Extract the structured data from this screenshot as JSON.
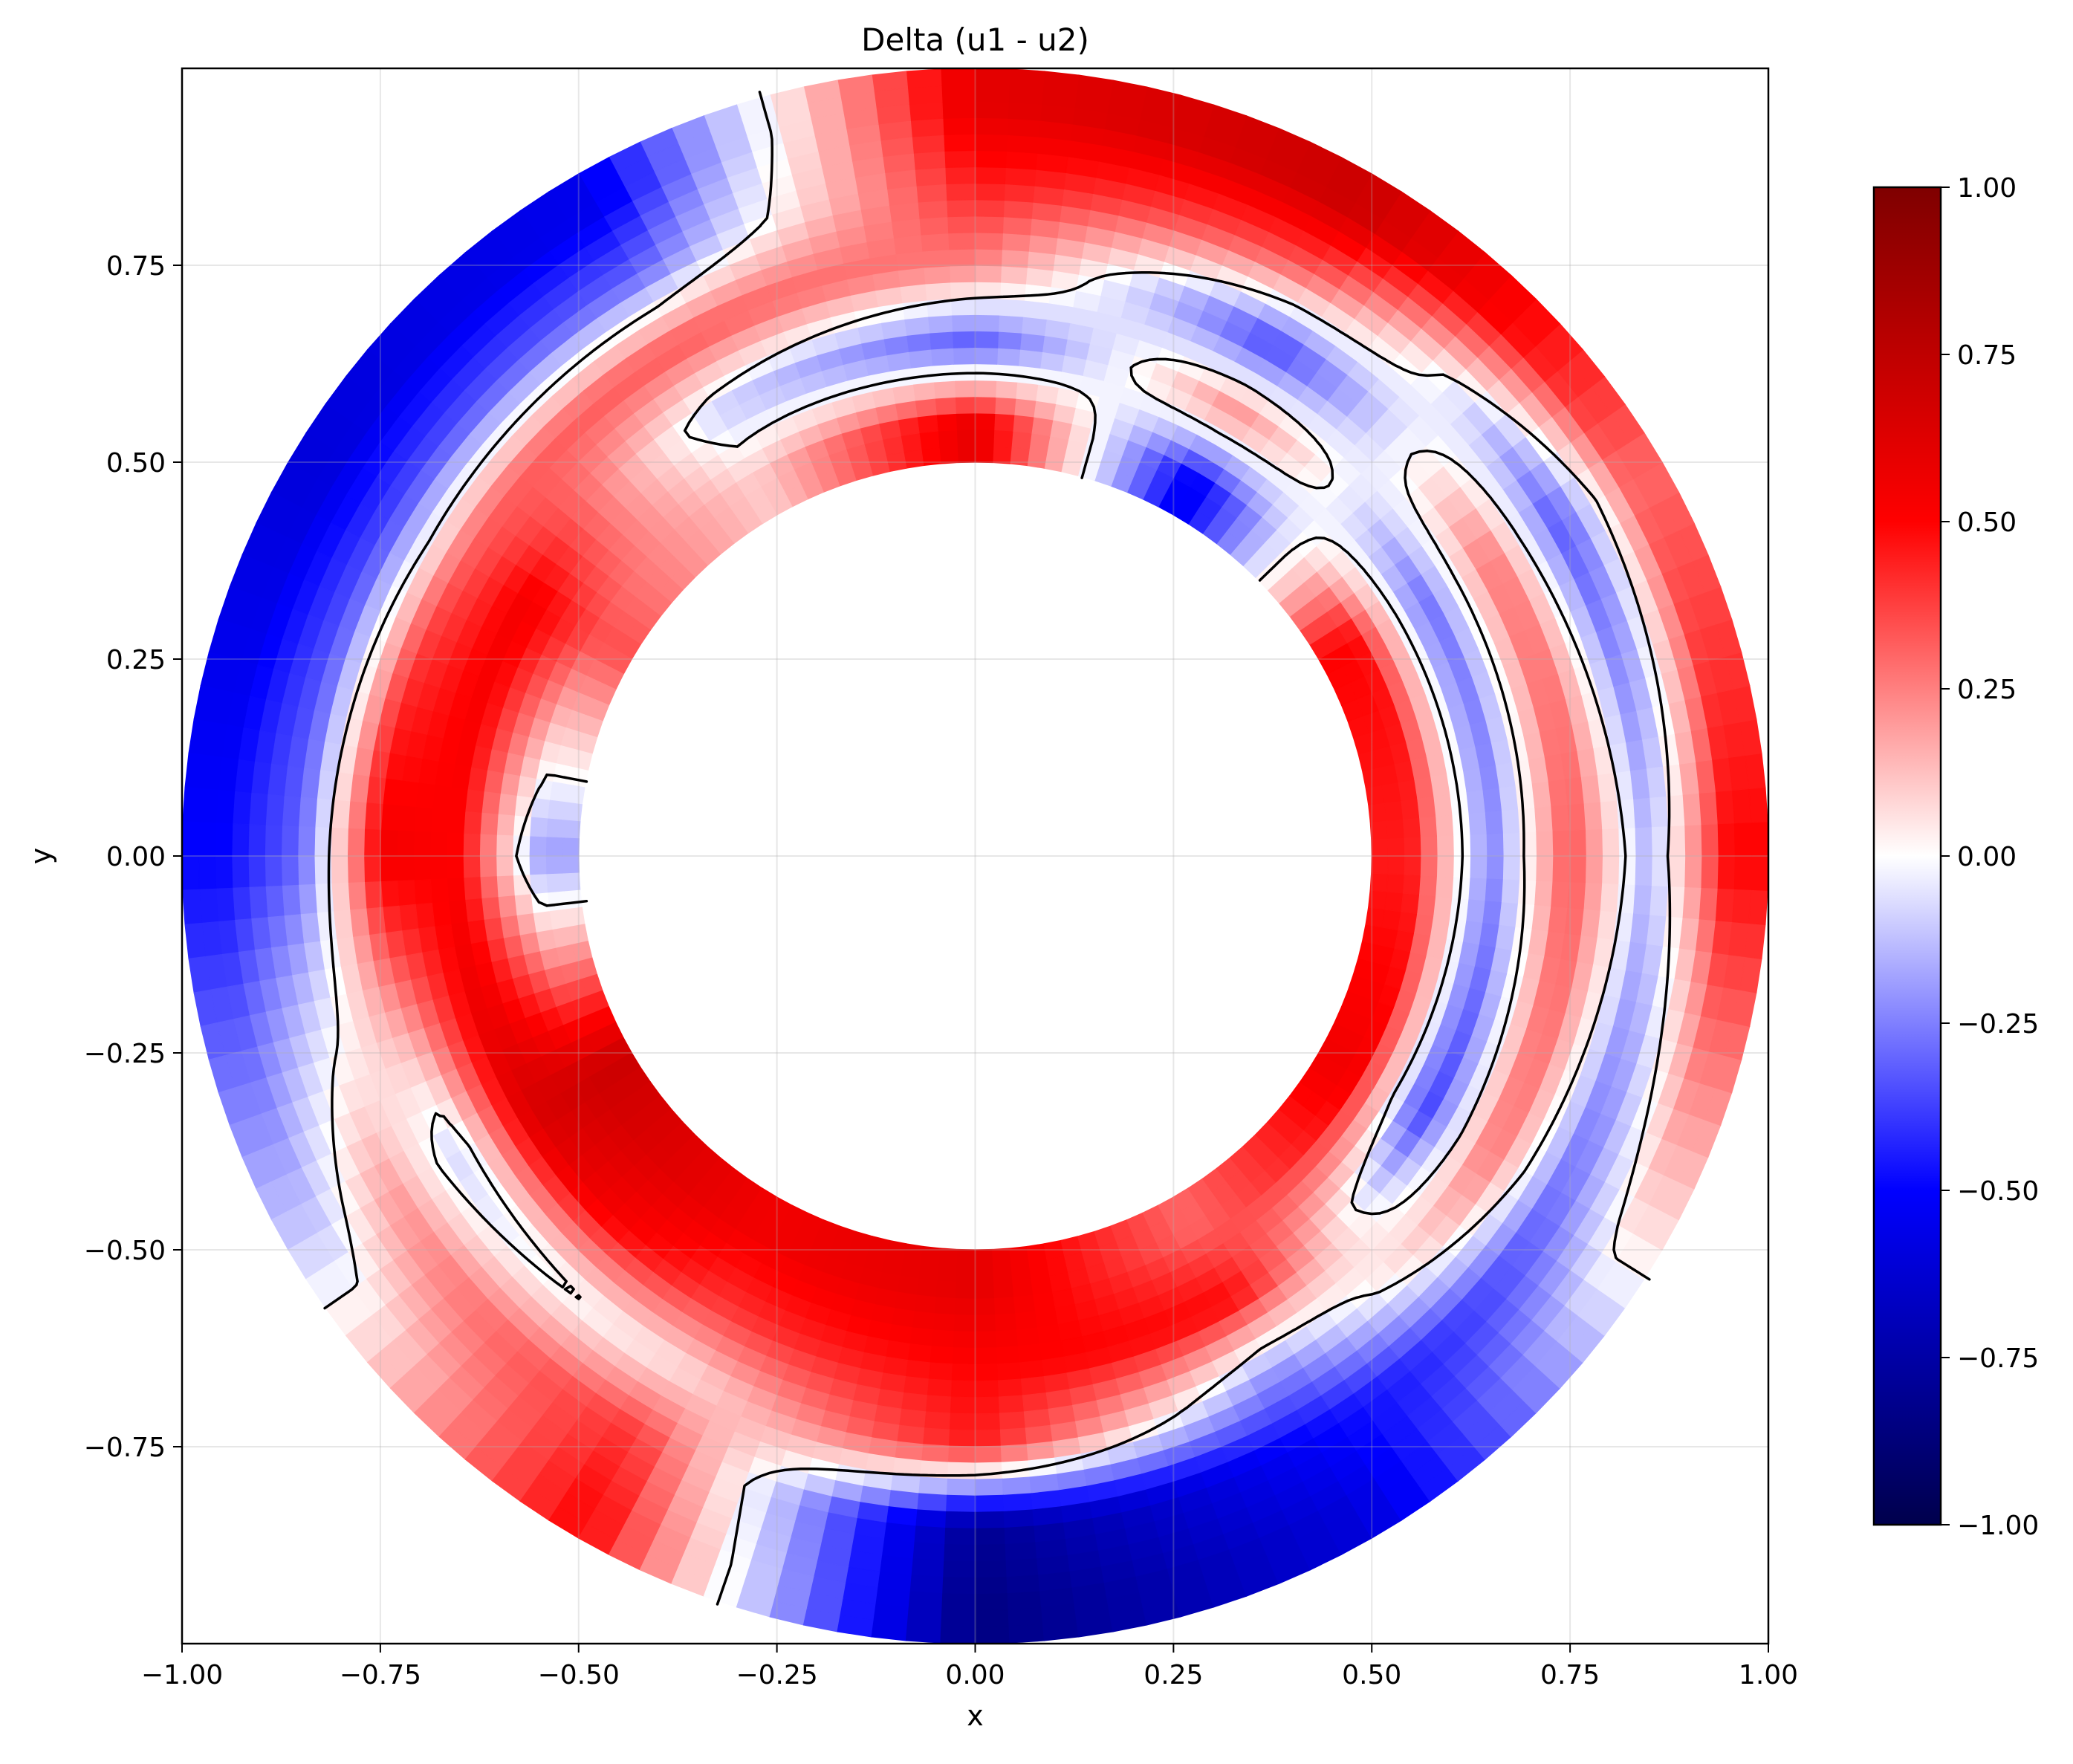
{
  "chart_data": {
    "type": "heatmap",
    "title": "Delta (u1 - u2)",
    "xlabel": "x",
    "ylabel": "y",
    "xlim": [
      -1.0,
      1.0
    ],
    "ylim": [
      -1.0,
      1.0
    ],
    "grid": true,
    "domain": {
      "shape": "annulus",
      "inner_radius": 0.5,
      "outer_radius": 1.0
    },
    "x_ticks": [
      "−1.00",
      "−0.75",
      "−0.50",
      "−0.25",
      "0.00",
      "0.25",
      "0.50",
      "0.75",
      "1.00"
    ],
    "x_tick_values": [
      -1.0,
      -0.75,
      -0.5,
      -0.25,
      0.0,
      0.25,
      0.5,
      0.75,
      1.0
    ],
    "y_ticks": [
      "−0.75",
      "−0.50",
      "−0.25",
      "0.00",
      "0.25",
      "0.50",
      "0.75"
    ],
    "y_tick_values": [
      -0.75,
      -0.5,
      -0.25,
      0.0,
      0.25,
      0.5,
      0.75
    ],
    "colorbar": {
      "colormap": "seismic",
      "min": -1.0,
      "max": 1.0,
      "ticks": [
        "1.00",
        "0.75",
        "0.50",
        "0.25",
        "0.00",
        "−0.25",
        "−0.50",
        "−0.75",
        "−1.00"
      ],
      "tick_values": [
        1.0,
        0.75,
        0.5,
        0.25,
        0.0,
        -0.25,
        -0.5,
        -0.75,
        -1.0
      ],
      "stops": [
        "#00004c",
        "#0000ff",
        "#ffffff",
        "#ff0000",
        "#7f0000"
      ]
    },
    "contour_level": 0.0,
    "contour_color": "#000000",
    "field_samples": {
      "radii": [
        0.55,
        0.65,
        0.75,
        0.85,
        0.95
      ],
      "angles_deg": [
        0,
        30,
        60,
        90,
        120,
        150,
        180,
        210,
        240,
        270,
        300,
        330
      ],
      "values": [
        [
          0.45,
          0.5,
          -0.55,
          0.6,
          0.1,
          0.35,
          -0.2,
          0.7,
          0.55,
          0.6,
          0.3,
          0.55
        ],
        [
          -0.25,
          -0.3,
          0.25,
          -0.35,
          -0.1,
          0.55,
          0.5,
          0.65,
          0.4,
          0.5,
          0.5,
          -0.4
        ],
        [
          0.35,
          0.3,
          -0.4,
          0.25,
          0.35,
          0.3,
          0.55,
          -0.1,
          0.05,
          0.45,
          -0.2,
          0.3
        ],
        [
          -0.15,
          -0.35,
          0.3,
          0.45,
          -0.3,
          -0.35,
          -0.3,
          0.2,
          0.4,
          -0.8,
          -0.5,
          -0.3
        ],
        [
          0.5,
          0.3,
          0.7,
          0.6,
          -0.55,
          -0.6,
          -0.5,
          -0.1,
          0.5,
          -0.85,
          -0.6,
          0.05
        ]
      ]
    }
  }
}
